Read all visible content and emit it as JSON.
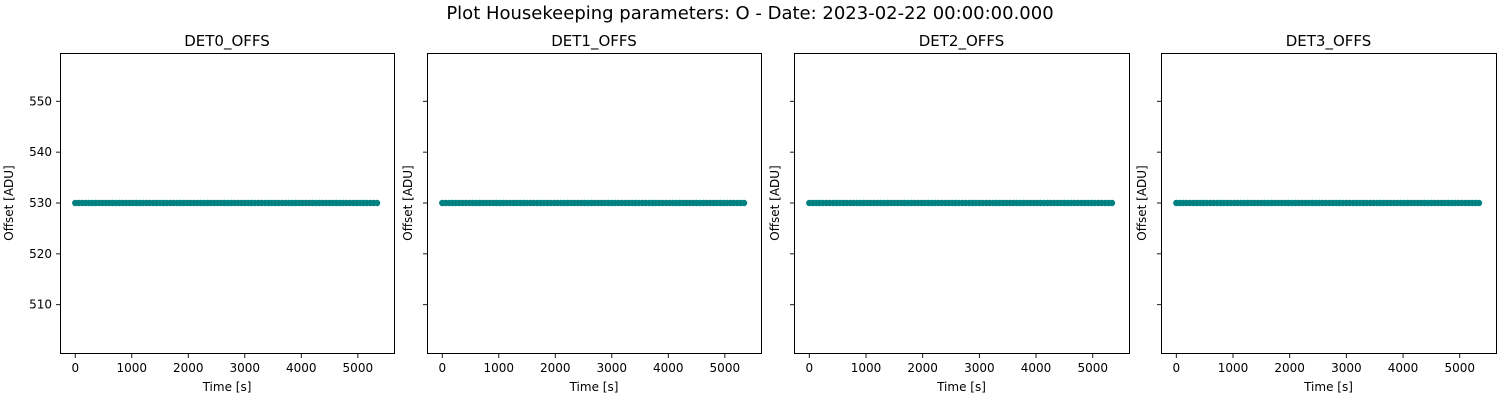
{
  "figure_title": "Plot Housekeeping parameters: O - Date: 2023-02-22 00:00:00.000",
  "marker_color": "#008080",
  "chart_data": [
    {
      "type": "scatter",
      "title": "DET0_OFFS",
      "xlabel": "Time [s]",
      "ylabel": "Offset [ADU]",
      "xlim": [
        -270,
        5640
      ],
      "ylim": [
        500.5,
        559.5
      ],
      "xticks": [
        0,
        1000,
        2000,
        3000,
        4000,
        5000
      ],
      "yticks": [
        510,
        520,
        530,
        540,
        550
      ],
      "show_ytick_labels": true,
      "x_start": 0,
      "x_end": 5340,
      "x_step": 60,
      "y_value": 530,
      "grid": false
    },
    {
      "type": "scatter",
      "title": "DET1_OFFS",
      "xlabel": "Time [s]",
      "ylabel": "Offset [ADU]",
      "xlim": [
        -270,
        5640
      ],
      "ylim": [
        500.5,
        559.5
      ],
      "xticks": [
        0,
        1000,
        2000,
        3000,
        4000,
        5000
      ],
      "yticks": [
        510,
        520,
        530,
        540,
        550
      ],
      "show_ytick_labels": false,
      "x_start": 0,
      "x_end": 5340,
      "x_step": 60,
      "y_value": 530,
      "grid": false
    },
    {
      "type": "scatter",
      "title": "DET2_OFFS",
      "xlabel": "Time [s]",
      "ylabel": "Offset [ADU]",
      "xlim": [
        -270,
        5640
      ],
      "ylim": [
        500.5,
        559.5
      ],
      "xticks": [
        0,
        1000,
        2000,
        3000,
        4000,
        5000
      ],
      "yticks": [
        510,
        520,
        530,
        540,
        550
      ],
      "show_ytick_labels": false,
      "x_start": 0,
      "x_end": 5340,
      "x_step": 60,
      "y_value": 530,
      "grid": false
    },
    {
      "type": "scatter",
      "title": "DET3_OFFS",
      "xlabel": "Time [s]",
      "ylabel": "Offset [ADU]",
      "xlim": [
        -270,
        5640
      ],
      "ylim": [
        500.5,
        559.5
      ],
      "xticks": [
        0,
        1000,
        2000,
        3000,
        4000,
        5000
      ],
      "yticks": [
        510,
        520,
        530,
        540,
        550
      ],
      "show_ytick_labels": false,
      "x_start": 0,
      "x_end": 5340,
      "x_step": 60,
      "y_value": 530,
      "grid": false
    }
  ]
}
